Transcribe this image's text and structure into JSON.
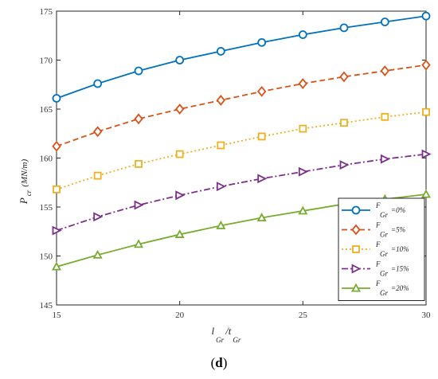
{
  "panel_label": {
    "open": "(",
    "letter": "d",
    "close": ")"
  },
  "chart_data": {
    "type": "line",
    "title": "",
    "xlabel": {
      "main": "l",
      "sub1": "Gr",
      "sep": "/t",
      "sub2": "Gr"
    },
    "ylabel": {
      "main": "P",
      "sub": "cr",
      "unit": "(MN/m)"
    },
    "xlim": [
      15,
      30
    ],
    "ylim": [
      145,
      175
    ],
    "x_ticks": [
      15,
      20,
      25,
      30
    ],
    "y_ticks": [
      145,
      150,
      155,
      160,
      165,
      170,
      175
    ],
    "grid": false,
    "legend_position": "bottom-right",
    "x": [
      15,
      16.67,
      18.33,
      20,
      21.67,
      23.33,
      25,
      26.67,
      28.33,
      30
    ],
    "series": [
      {
        "label_main": "F",
        "label_sub": "Gr",
        "label_value": "=0%",
        "color": "#0072BD",
        "dash": "solid",
        "marker": "circle",
        "values": [
          166.1,
          167.6,
          168.9,
          170.0,
          170.9,
          171.8,
          172.6,
          173.3,
          173.9,
          174.5
        ]
      },
      {
        "label_main": "F",
        "label_sub": "Gr",
        "label_value": "=5%",
        "color": "#D95319",
        "dash": "dashed",
        "marker": "diamond",
        "values": [
          161.2,
          162.7,
          164.0,
          165.0,
          165.9,
          166.8,
          167.6,
          168.3,
          168.9,
          169.5
        ]
      },
      {
        "label_main": "F",
        "label_sub": "Gr",
        "label_value": "=10%",
        "color": "#EDB120",
        "dash": "dotted",
        "marker": "square",
        "values": [
          156.8,
          158.2,
          159.4,
          160.4,
          161.3,
          162.2,
          163.0,
          163.6,
          164.2,
          164.7
        ]
      },
      {
        "label_main": "F",
        "label_sub": "Gr",
        "label_value": "=15%",
        "color": "#7E2F8E",
        "dash": "dashdot",
        "marker": "triangle-right",
        "values": [
          152.6,
          154.0,
          155.2,
          156.2,
          157.1,
          157.9,
          158.6,
          159.3,
          159.9,
          160.4
        ]
      },
      {
        "label_main": "F",
        "label_sub": "Gr",
        "label_value": "=20%",
        "color": "#77AC30",
        "dash": "solid",
        "marker": "triangle-up",
        "values": [
          148.9,
          150.1,
          151.2,
          152.2,
          153.1,
          153.9,
          154.6,
          155.3,
          155.8,
          156.3
        ]
      }
    ]
  }
}
